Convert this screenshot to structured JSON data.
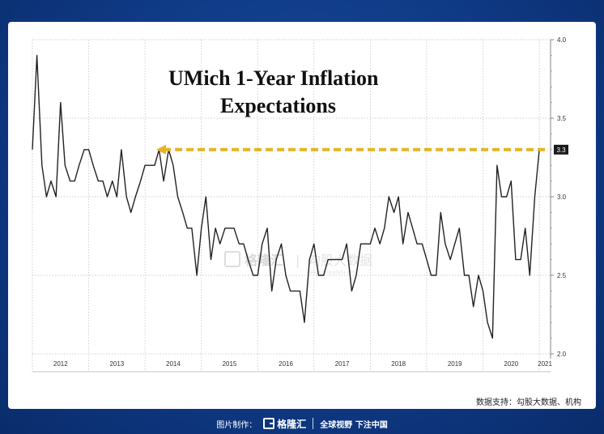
{
  "chart_data": {
    "type": "line",
    "title_lines": [
      "UMich 1-Year Inflation",
      "Expectations"
    ],
    "x_tick_labels": [
      "2012",
      "2013",
      "2014",
      "2015",
      "2016",
      "2017",
      "2018",
      "2019",
      "2020",
      "2021"
    ],
    "y_tick_labels": [
      "4.0",
      "3.5",
      "3.0",
      "2.5",
      "2.0"
    ],
    "ylim": [
      2.0,
      4.0
    ],
    "xlim": [
      2012.0,
      2021.2
    ],
    "grid": true,
    "last_value_label": "3.3",
    "annotation": {
      "type": "dashed-arrow",
      "from_date": 2021.1,
      "to_date": 2014.2,
      "value": 3.3,
      "color": "#e6b422"
    },
    "series": [
      {
        "color": "#222222",
        "x": [
          2012.0,
          2012.08,
          2012.17,
          2012.25,
          2012.33,
          2012.42,
          2012.5,
          2012.58,
          2012.67,
          2012.75,
          2012.83,
          2012.92,
          2013.0,
          2013.08,
          2013.17,
          2013.25,
          2013.33,
          2013.42,
          2013.5,
          2013.58,
          2013.67,
          2013.75,
          2013.83,
          2013.92,
          2014.0,
          2014.08,
          2014.17,
          2014.25,
          2014.33,
          2014.42,
          2014.5,
          2014.58,
          2014.67,
          2014.75,
          2014.83,
          2014.92,
          2015.0,
          2015.08,
          2015.17,
          2015.25,
          2015.33,
          2015.42,
          2015.5,
          2015.58,
          2015.67,
          2015.75,
          2015.83,
          2015.92,
          2016.0,
          2016.08,
          2016.17,
          2016.25,
          2016.33,
          2016.42,
          2016.5,
          2016.58,
          2016.67,
          2016.75,
          2016.83,
          2016.92,
          2017.0,
          2017.08,
          2017.17,
          2017.25,
          2017.33,
          2017.42,
          2017.5,
          2017.58,
          2017.67,
          2017.75,
          2017.83,
          2017.92,
          2018.0,
          2018.08,
          2018.17,
          2018.25,
          2018.33,
          2018.42,
          2018.5,
          2018.58,
          2018.67,
          2018.75,
          2018.83,
          2018.92,
          2019.0,
          2019.08,
          2019.17,
          2019.25,
          2019.33,
          2019.42,
          2019.5,
          2019.58,
          2019.67,
          2019.75,
          2019.83,
          2019.92,
          2020.0,
          2020.08,
          2020.17,
          2020.25,
          2020.33,
          2020.42,
          2020.5,
          2020.58,
          2020.67,
          2020.75,
          2020.83,
          2020.92,
          2021.0,
          2021.08
        ],
        "y": [
          3.3,
          3.9,
          3.2,
          3.0,
          3.1,
          3.0,
          3.6,
          3.2,
          3.1,
          3.1,
          3.2,
          3.3,
          3.3,
          3.2,
          3.1,
          3.1,
          3.0,
          3.1,
          3.0,
          3.3,
          3.0,
          2.9,
          3.0,
          3.1,
          3.2,
          3.2,
          3.2,
          3.3,
          3.1,
          3.3,
          3.2,
          3.0,
          2.9,
          2.8,
          2.8,
          2.5,
          2.8,
          3.0,
          2.6,
          2.8,
          2.7,
          2.8,
          2.8,
          2.8,
          2.7,
          2.7,
          2.6,
          2.5,
          2.5,
          2.7,
          2.8,
          2.4,
          2.6,
          2.7,
          2.5,
          2.4,
          2.4,
          2.4,
          2.2,
          2.6,
          2.7,
          2.5,
          2.5,
          2.6,
          2.6,
          2.6,
          2.6,
          2.7,
          2.4,
          2.5,
          2.7,
          2.7,
          2.7,
          2.8,
          2.7,
          2.8,
          3.0,
          2.9,
          3.0,
          2.7,
          2.9,
          2.8,
          2.7,
          2.7,
          2.6,
          2.5,
          2.5,
          2.9,
          2.7,
          2.6,
          2.7,
          2.8,
          2.5,
          2.5,
          2.3,
          2.5,
          2.4,
          2.2,
          2.1,
          3.2,
          3.0,
          3.0,
          3.1,
          2.6,
          2.6,
          2.8,
          2.5,
          3.0,
          3.3,
          3.3
        ]
      }
    ]
  },
  "watermark": {
    "brand": "格隆汇",
    "divider": "|",
    "text": "勾股大数据",
    "url": "www.gogudata.com"
  },
  "source": "数据支持：勾股大数据、机构",
  "footer": {
    "prefix": "图片制作：",
    "logo_text": "格隆汇",
    "slogan": "全球视野 下注中国"
  }
}
